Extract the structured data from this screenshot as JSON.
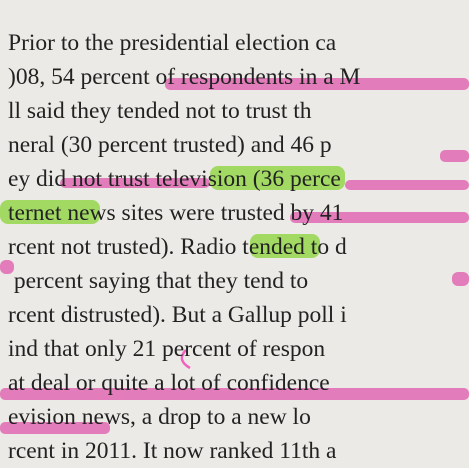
{
  "lines": [
    "Prior to the presidential election ca",
    ")08, 54 percent of respondents in a M",
    "ll said they tended not to trust th",
    "neral (30 percent trusted) and 46 p",
    "ey did not trust television (36 perce",
    "ternet news sites were trusted by 41",
    "rcent not trusted). Radio tended to d",
    " percent saying that they tend to",
    "rcent distrusted). But a Gallup poll i",
    "ind that only 21 percent of respon",
    "at deal or quite a lot of confidence",
    "evision news, a drop to a new lo",
    "rcent in 2011. It now ranked 11th a"
  ]
}
